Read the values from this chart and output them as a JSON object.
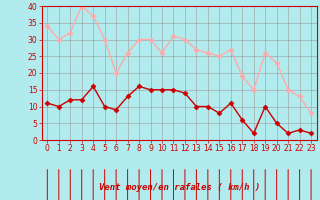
{
  "title": "",
  "xlabel": "Vent moyen/en rafales ( km/h )",
  "background_color": "#b2ebee",
  "grid_color": "#999999",
  "x": [
    0,
    1,
    2,
    3,
    4,
    5,
    6,
    7,
    8,
    9,
    10,
    11,
    12,
    13,
    14,
    15,
    16,
    17,
    18,
    19,
    20,
    21,
    22,
    23
  ],
  "wind_avg": [
    11,
    10,
    12,
    12,
    16,
    10,
    9,
    13,
    16,
    15,
    15,
    15,
    14,
    10,
    10,
    8,
    11,
    6,
    2,
    10,
    5,
    2,
    3,
    2
  ],
  "wind_gust": [
    34,
    30,
    32,
    40,
    37,
    30,
    20,
    26,
    30,
    30,
    26,
    31,
    30,
    27,
    26,
    25,
    27,
    19,
    15,
    26,
    23,
    15,
    13,
    8
  ],
  "avg_color": "#cc0000",
  "gust_color": "#ffaaaa",
  "ylim": [
    0,
    40
  ],
  "xlim": [
    -0.5,
    23.5
  ],
  "yticks": [
    0,
    5,
    10,
    15,
    20,
    25,
    30,
    35,
    40
  ],
  "xticks": [
    0,
    1,
    2,
    3,
    4,
    5,
    6,
    7,
    8,
    9,
    10,
    11,
    12,
    13,
    14,
    15,
    16,
    17,
    18,
    19,
    20,
    21,
    22,
    23
  ],
  "marker": "D",
  "markersize": 2.5,
  "linewidth": 1.0,
  "font_color": "#cc0000",
  "tick_fontsize": 5.5,
  "xlabel_fontsize": 6.5,
  "arrow_angles": [
    180,
    150,
    180,
    180,
    150,
    150,
    150,
    135,
    135,
    120,
    150,
    180,
    150,
    180,
    180,
    180,
    160,
    150,
    150,
    150,
    150,
    180,
    180,
    180
  ]
}
